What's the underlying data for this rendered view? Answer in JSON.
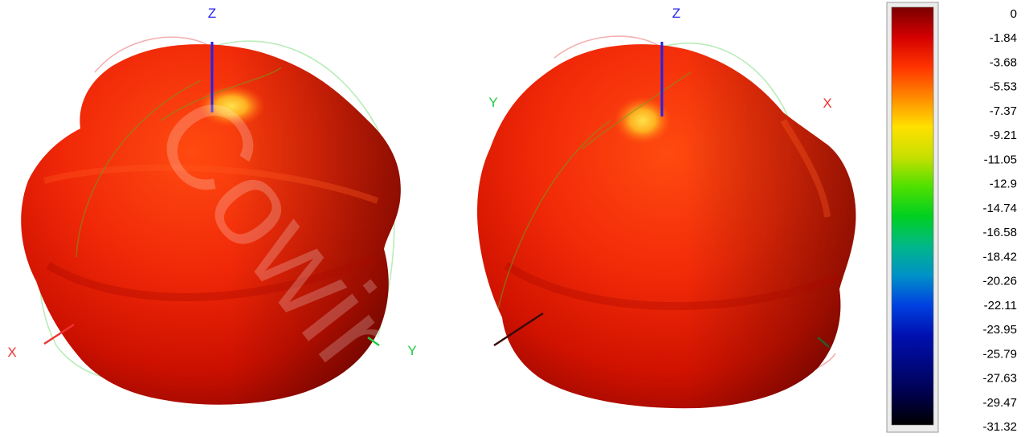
{
  "chart_data": {
    "type": "heatmap",
    "description_kind": "3d-radiation-pattern",
    "views": [
      {
        "axes": [
          {
            "name": "Z",
            "color": "#2222ee"
          },
          {
            "name": "X",
            "color": "#ee3333"
          },
          {
            "name": "Y",
            "color": "#22cc44"
          }
        ]
      },
      {
        "axes": [
          {
            "name": "Z",
            "color": "#2222ee"
          },
          {
            "name": "Y",
            "color": "#22cc44"
          },
          {
            "name": "X",
            "color": "#ee3333"
          }
        ]
      }
    ],
    "colorbar": {
      "ticks": [
        "0",
        "-1.84",
        "-3.68",
        "-5.53",
        "-7.37",
        "-9.21",
        "-11.05",
        "-12.9",
        "-14.74",
        "-16.58",
        "-18.42",
        "-20.26",
        "-22.11",
        "-23.95",
        "-25.79",
        "-27.63",
        "-29.47",
        "-31.32"
      ],
      "range": [
        -31.32,
        0
      ],
      "colors": [
        "#7a0000",
        "#d40000",
        "#ff3300",
        "#ff8800",
        "#ffe000",
        "#c8e000",
        "#50e000",
        "#00d020",
        "#00b888",
        "#0090c8",
        "#0040e0",
        "#0010b0",
        "#000880",
        "#00004a",
        "#000000"
      ]
    },
    "watermark": "Cowin"
  }
}
